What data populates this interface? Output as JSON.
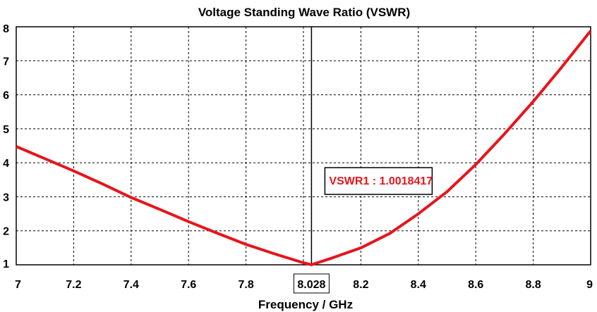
{
  "chart_data": {
    "type": "line",
    "title": "Voltage Standing Wave Ratio (VSWR)",
    "xlabel": "Frequency / GHz",
    "ylabel": "",
    "xlim": [
      7,
      9
    ],
    "ylim": [
      1,
      8
    ],
    "x_ticks": [
      "7",
      "7.2",
      "7.4",
      "7.6",
      "7.8",
      "8.2",
      "8.4",
      "8.6",
      "8.8",
      "9"
    ],
    "y_ticks": [
      "1",
      "2",
      "3",
      "4",
      "5",
      "6",
      "7",
      "8"
    ],
    "grid": true,
    "line_color": "#e8141b",
    "series": [
      {
        "x": [
          7.0,
          7.1,
          7.2,
          7.3,
          7.4,
          7.5,
          7.6,
          7.7,
          7.8,
          7.9,
          8.0,
          8.028,
          8.1,
          8.2,
          8.3,
          8.4,
          8.5,
          8.6,
          8.7,
          8.8,
          8.9,
          9.0
        ],
        "y": [
          4.48,
          4.12,
          3.76,
          3.38,
          2.98,
          2.63,
          2.27,
          1.93,
          1.6,
          1.32,
          1.06,
          1.0018,
          1.2,
          1.5,
          1.92,
          2.5,
          3.15,
          3.95,
          4.85,
          5.8,
          6.82,
          7.88
        ]
      }
    ],
    "marker": {
      "x": 8.028,
      "x_label": "8.028",
      "label": "VSWR1 : 1.0018417"
    }
  }
}
